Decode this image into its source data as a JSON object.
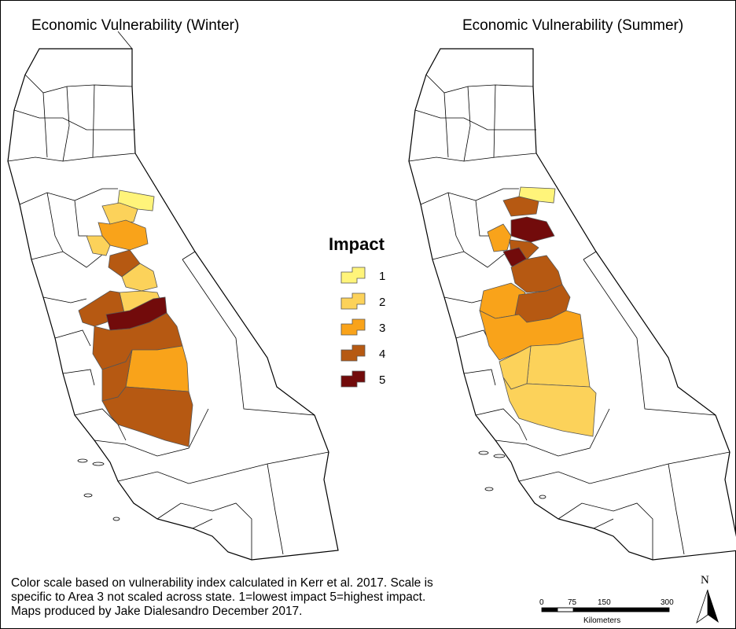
{
  "titles": {
    "left": "Economic Vulnerability (Winter)",
    "right": "Economic Vulnerability (Summer)"
  },
  "legend": {
    "title": "Impact",
    "items": [
      {
        "label": "1",
        "color": "#FFF47A"
      },
      {
        "label": "2",
        "color": "#FCD25A"
      },
      {
        "label": "3",
        "color": "#F9A31A"
      },
      {
        "label": "4",
        "color": "#B65912"
      },
      {
        "label": "5",
        "color": "#720B0B"
      }
    ]
  },
  "caption": {
    "line1": "Color scale based on vulnerability index calculated in Kerr et al. 2017. Scale is",
    "line2": "specific to Area 3 not scaled across state. 1=lowest impact 5=highest impact.",
    "line3": "Maps produced by Jake Dialesandro December 2017."
  },
  "scale_bar": {
    "ticks": [
      "0",
      "75",
      "150",
      "300"
    ],
    "unit": "Kilometers"
  },
  "north_arrow": {
    "label": "N"
  }
}
